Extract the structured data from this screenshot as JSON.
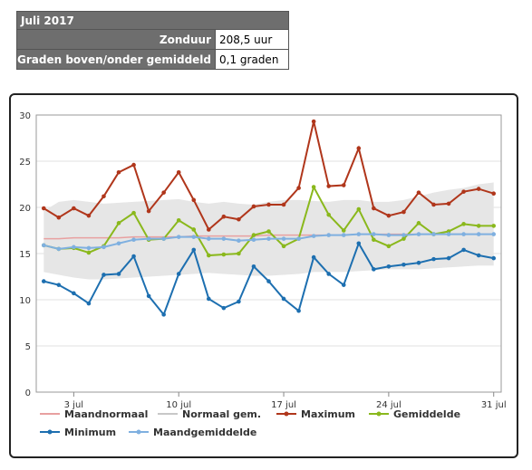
{
  "summary": {
    "title": "Juli 2017",
    "rows": [
      {
        "label": "Zonduur",
        "value": "208,5 uur"
      },
      {
        "label": "Graden boven/onder gemiddeld",
        "value": "0,1 graden"
      }
    ]
  },
  "chart_data": {
    "type": "line",
    "x": [
      1,
      2,
      3,
      4,
      5,
      6,
      7,
      8,
      9,
      10,
      11,
      12,
      13,
      14,
      15,
      16,
      17,
      18,
      19,
      20,
      21,
      22,
      23,
      24,
      25,
      26,
      27,
      28,
      29,
      30,
      31
    ],
    "x_tick_labels": [
      "3 jul",
      "10 jul",
      "17 jul",
      "24 jul",
      "31 jul"
    ],
    "x_tick_values": [
      3,
      10,
      17,
      24,
      31
    ],
    "y_ticks": [
      0,
      5,
      10,
      15,
      20,
      25,
      30
    ],
    "ylim": [
      0,
      30
    ],
    "grid": true,
    "legend_position": "bottom",
    "series": [
      {
        "name": "Maandnormaal",
        "color": "#e8a0a0",
        "kind": "line",
        "values": [
          16.6,
          16.6,
          16.7,
          16.7,
          16.7,
          16.7,
          16.8,
          16.8,
          16.8,
          16.8,
          16.9,
          16.9,
          16.9,
          16.9,
          16.9,
          17.0,
          17.0,
          17.0,
          17.0,
          17.0,
          17.0,
          17.1,
          17.1,
          17.1,
          17.1,
          17.1,
          17.1,
          17.1,
          17.1,
          17.1,
          17.1
        ]
      },
      {
        "name": "Normaal gem.",
        "color": "#dcdcdc",
        "kind": "band",
        "lower": [
          13.0,
          12.7,
          12.4,
          12.2,
          12.2,
          12.3,
          12.4,
          12.5,
          12.6,
          12.7,
          12.8,
          12.9,
          12.8,
          12.7,
          12.6,
          12.6,
          12.7,
          12.8,
          13.0,
          13.0,
          13.0,
          13.1,
          13.2,
          13.3,
          13.3,
          13.3,
          13.4,
          13.5,
          13.6,
          13.7,
          13.7
        ],
        "upper": [
          19.6,
          20.6,
          20.8,
          20.6,
          20.4,
          20.5,
          20.6,
          20.7,
          20.8,
          20.9,
          20.6,
          20.4,
          20.6,
          20.4,
          20.3,
          20.6,
          20.8,
          20.8,
          20.7,
          20.6,
          20.8,
          20.8,
          20.6,
          20.6,
          20.8,
          21.2,
          21.6,
          21.9,
          22.1,
          22.5,
          22.7
        ]
      },
      {
        "name": "Maximum",
        "color": "#b0361b",
        "kind": "line",
        "values": [
          19.9,
          18.9,
          19.9,
          19.1,
          21.2,
          23.8,
          24.6,
          19.6,
          21.6,
          23.8,
          20.8,
          17.6,
          19.0,
          18.7,
          20.1,
          20.3,
          20.3,
          22.1,
          29.3,
          22.3,
          22.4,
          26.4,
          19.9,
          19.1,
          19.5,
          21.6,
          20.3,
          20.4,
          21.7,
          22.0,
          21.5
        ]
      },
      {
        "name": "Gemiddelde",
        "color": "#8ab81c",
        "kind": "line",
        "values": [
          15.9,
          15.5,
          15.6,
          15.1,
          15.8,
          18.3,
          19.4,
          16.5,
          16.6,
          18.6,
          17.6,
          14.8,
          14.9,
          15.0,
          17.0,
          17.4,
          15.8,
          16.6,
          22.2,
          19.2,
          17.5,
          19.8,
          16.5,
          15.8,
          16.6,
          18.3,
          17.1,
          17.4,
          18.2,
          18.0,
          18.0
        ]
      },
      {
        "name": "Minimum",
        "color": "#1d6fb0",
        "kind": "line",
        "values": [
          12.0,
          11.6,
          10.7,
          9.6,
          12.7,
          12.8,
          14.7,
          10.4,
          8.4,
          12.8,
          15.4,
          10.1,
          9.1,
          9.8,
          13.6,
          12.0,
          10.1,
          8.8,
          14.6,
          12.8,
          11.6,
          16.1,
          13.3,
          13.6,
          13.8,
          14.0,
          14.4,
          14.5,
          15.4,
          14.8,
          14.5
        ]
      },
      {
        "name": "Maandgemiddelde",
        "color": "#7fb0e0",
        "kind": "line",
        "values": [
          15.9,
          15.5,
          15.7,
          15.6,
          15.7,
          16.1,
          16.5,
          16.6,
          16.6,
          16.8,
          16.8,
          16.6,
          16.6,
          16.4,
          16.5,
          16.6,
          16.6,
          16.6,
          16.9,
          17.0,
          17.0,
          17.1,
          17.1,
          17.0,
          17.0,
          17.1,
          17.1,
          17.1,
          17.1,
          17.1,
          17.1
        ]
      }
    ]
  }
}
